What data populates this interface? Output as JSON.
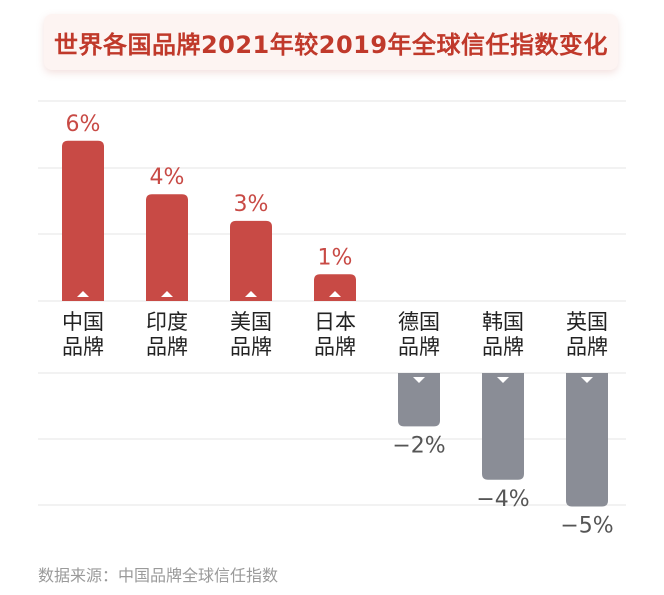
{
  "chart_data": {
    "type": "bar",
    "title": "世界各国品牌2021年较2019年全球信任指数变化",
    "categories": [
      [
        "中国",
        "品牌"
      ],
      [
        "印度",
        "品牌"
      ],
      [
        "美国",
        "品牌"
      ],
      [
        "日本",
        "品牌"
      ],
      [
        "德国",
        "品牌"
      ],
      [
        "韩国",
        "品牌"
      ],
      [
        "英国",
        "品牌"
      ]
    ],
    "values": [
      6,
      4,
      3,
      1,
      -2,
      -4,
      -5
    ],
    "value_labels": [
      "6%",
      "4%",
      "3%",
      "1%",
      "−2%",
      "−4%",
      "−5%"
    ],
    "ylim": [
      -6,
      8
    ],
    "grid": true,
    "colors": {
      "positive": "#c84a45",
      "negative": "#8a8d96",
      "title": "#c0392b",
      "grid": "#e4e4e4"
    }
  },
  "source": "数据来源：中国品牌全球信任指数"
}
